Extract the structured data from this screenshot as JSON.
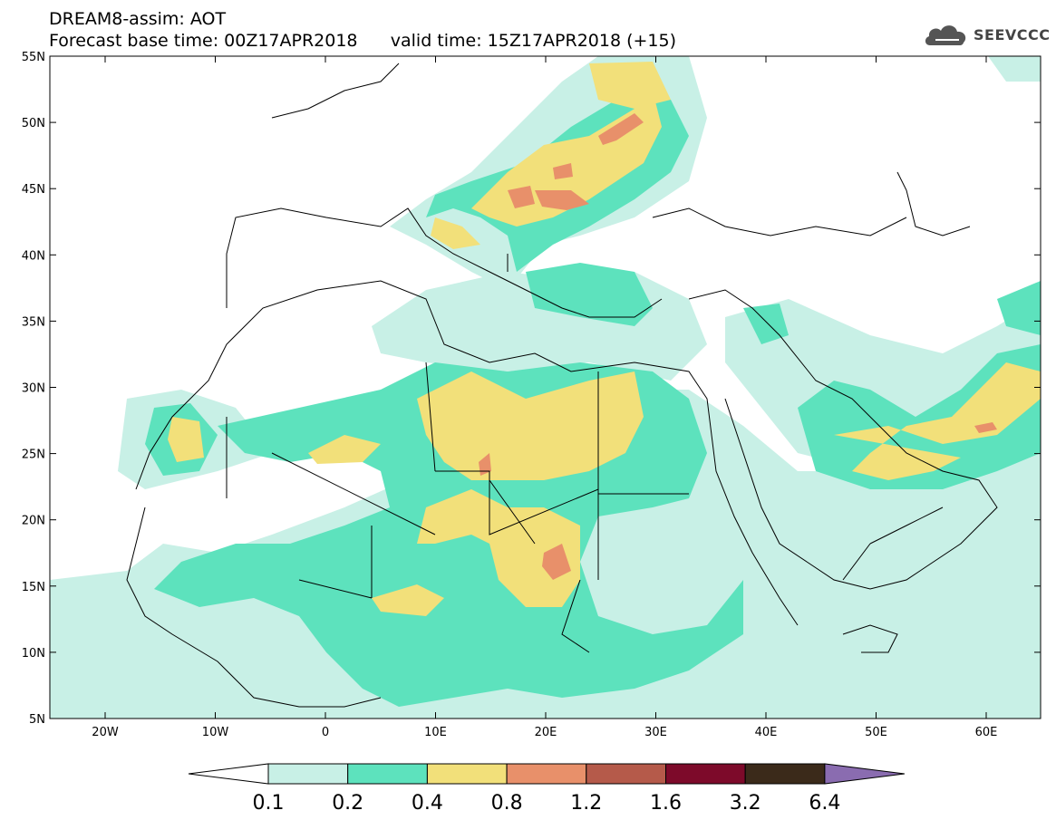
{
  "header": {
    "line1": "DREAM8-assim: AOT",
    "line2": "Forecast base time: 00Z17APR2018      valid time: 15Z17APR2018 (+15)"
  },
  "logo": {
    "text": "SEEVCCC",
    "icon": "cloud-icon"
  },
  "axes": {
    "lat_labels": [
      "55N",
      "50N",
      "45N",
      "40N",
      "35N",
      "30N",
      "25N",
      "20N",
      "15N",
      "10N",
      "5N"
    ],
    "lon_labels": [
      "20W",
      "10W",
      "0",
      "10E",
      "20E",
      "30E",
      "40E",
      "50E",
      "60E"
    ]
  },
  "colorbar": {
    "labels": [
      "0.1",
      "0.2",
      "0.4",
      "0.8",
      "1.2",
      "1.6",
      "3.2",
      "6.4"
    ],
    "colors": [
      "#ffffff",
      "#c8f0e6",
      "#5de2bd",
      "#f2e07a",
      "#e8906a",
      "#b55a4a",
      "#7d0a2a",
      "#3b2a1a",
      "#8a6cb0"
    ]
  }
}
